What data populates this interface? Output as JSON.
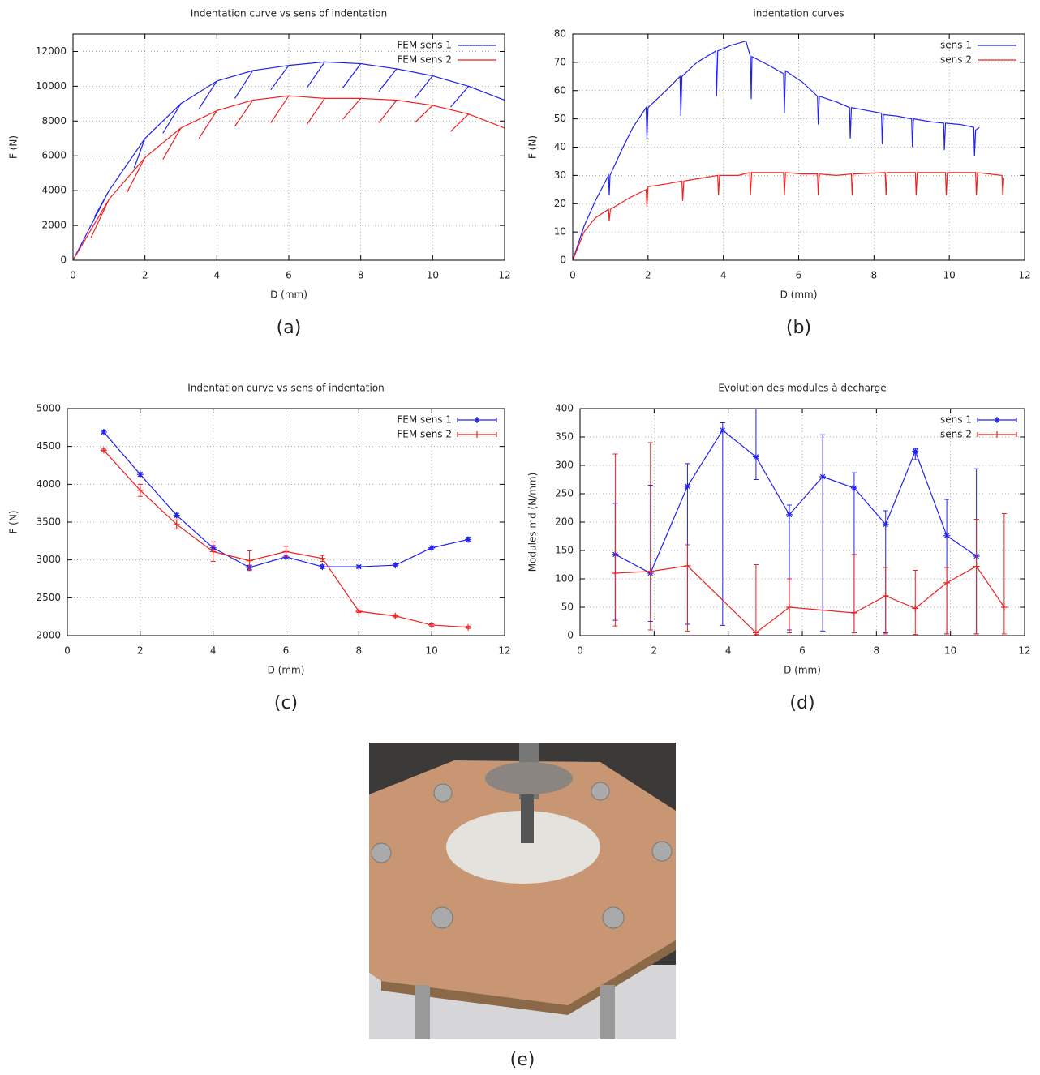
{
  "chart_data": [
    {
      "type": "line",
      "title": "Indentation curve vs sens of indentation",
      "xlabel": "D (mm)",
      "ylabel": "F (N)",
      "caption": "(a)",
      "xlim": [
        0,
        12
      ],
      "xticks": [
        0,
        2,
        4,
        6,
        8,
        10,
        12
      ],
      "ylim": [
        0,
        13000
      ],
      "yticks": [
        0,
        2000,
        4000,
        6000,
        8000,
        10000,
        12000
      ],
      "grid": true,
      "legend": "top right",
      "series": [
        {
          "name": "FEM sens 1",
          "color": "#2222ee",
          "x": [
            0,
            1,
            0.6,
            1,
            2,
            1.7,
            2,
            3,
            2.5,
            3,
            4,
            3.5,
            4,
            5,
            4.5,
            5,
            6,
            5.5,
            6,
            7,
            6.5,
            7,
            8,
            7.5,
            8,
            9,
            8.5,
            9,
            10,
            9.5,
            10,
            11,
            10.5,
            11,
            12
          ],
          "values": [
            0,
            4000,
            2500,
            4000,
            7000,
            5300,
            7000,
            9000,
            7300,
            9000,
            10300,
            8700,
            10300,
            10900,
            9300,
            10900,
            11200,
            9800,
            11200,
            11400,
            9900,
            11400,
            11300,
            9900,
            11300,
            11000,
            9700,
            11000,
            10600,
            9300,
            10600,
            10000,
            8800,
            10000,
            9200
          ]
        },
        {
          "name": "FEM sens 2",
          "color": "#ee2222",
          "x": [
            0,
            1,
            0.5,
            1,
            2,
            1.5,
            2,
            3,
            2.5,
            3,
            4,
            3.5,
            4,
            5,
            4.5,
            5,
            6,
            5.5,
            6,
            7,
            6.5,
            7,
            8,
            7.5,
            8,
            9,
            8.5,
            9,
            10,
            9.5,
            10,
            11,
            10.5,
            11,
            12
          ],
          "values": [
            0,
            3500,
            1300,
            3500,
            5900,
            3900,
            5900,
            7600,
            5800,
            7600,
            8600,
            7000,
            8600,
            9200,
            7700,
            9200,
            9450,
            7900,
            9450,
            9300,
            7800,
            9300,
            9300,
            8100,
            9300,
            9200,
            7900,
            9200,
            8900,
            7900,
            8900,
            8400,
            7400,
            8400,
            7600
          ]
        }
      ]
    },
    {
      "type": "line",
      "title": "indentation curves",
      "xlabel": "D (mm)",
      "ylabel": "F (N)",
      "caption": "(b)",
      "xlim": [
        0,
        12
      ],
      "xticks": [
        0,
        2,
        4,
        6,
        8,
        10,
        12
      ],
      "ylim": [
        0,
        80
      ],
      "yticks": [
        0,
        10,
        20,
        30,
        40,
        50,
        60,
        70,
        80
      ],
      "grid": true,
      "legend": "top right",
      "series": [
        {
          "name": "sens 1",
          "color": "#2222ee",
          "x": [
            0,
            0.3,
            0.6,
            0.95,
            0.97,
            0.99,
            1.3,
            1.6,
            1.95,
            1.97,
            2,
            2.4,
            2.85,
            2.87,
            2.9,
            3.3,
            3.8,
            3.82,
            3.85,
            4.2,
            4.6,
            4.72,
            4.74,
            4.76,
            5.2,
            5.6,
            5.62,
            5.65,
            6.1,
            6.5,
            6.52,
            6.55,
            7,
            7.35,
            7.37,
            7.4,
            7.8,
            8.2,
            8.22,
            8.25,
            8.6,
            9,
            9.02,
            9.05,
            9.5,
            9.85,
            9.87,
            9.9,
            10.3,
            10.65,
            10.67,
            10.7,
            10.8
          ],
          "values": [
            0,
            12,
            21,
            30,
            23,
            30,
            39,
            47,
            54,
            43,
            54,
            59,
            65,
            51,
            65,
            70,
            74,
            58,
            74,
            76,
            77.5,
            72,
            57,
            72,
            69,
            66,
            52,
            67,
            63,
            58,
            48,
            58,
            56,
            54,
            43,
            54,
            53,
            52,
            41,
            51.5,
            51,
            50,
            40,
            50,
            49,
            48.5,
            39,
            48.5,
            48,
            47,
            37,
            46,
            47
          ]
        },
        {
          "name": "sens 2",
          "color": "#ee2222",
          "x": [
            0,
            0.3,
            0.6,
            0.95,
            0.97,
            1,
            1.5,
            1.95,
            1.97,
            2,
            2.5,
            2.9,
            2.92,
            2.95,
            3.4,
            3.85,
            3.87,
            3.9,
            4.4,
            4.7,
            4.72,
            4.75,
            5.3,
            5.6,
            5.62,
            5.65,
            6.1,
            6.5,
            6.52,
            6.55,
            7,
            7.4,
            7.42,
            7.45,
            8.3,
            8.32,
            8.35,
            9.1,
            9.12,
            9.15,
            9.9,
            9.92,
            9.95,
            10.7,
            10.72,
            10.75,
            11.4,
            11.42,
            11.45
          ],
          "values": [
            0,
            10,
            15,
            18,
            14,
            18,
            22,
            25,
            19,
            26,
            27,
            28,
            21,
            28,
            29,
            30,
            23,
            30,
            30,
            31,
            23,
            31,
            31,
            31,
            23,
            31,
            30.5,
            30.5,
            23,
            30.5,
            30,
            30.5,
            23,
            30.5,
            31,
            23,
            31,
            31,
            23,
            31,
            31,
            23,
            31,
            31,
            23,
            31,
            30,
            23,
            29
          ]
        }
      ]
    },
    {
      "type": "line",
      "title": "Indentation curve vs sens of indentation",
      "xlabel": "D (mm)",
      "ylabel": "F (N)",
      "caption": "(c)",
      "xlim": [
        0,
        12
      ],
      "xticks": [
        0,
        2,
        4,
        6,
        8,
        10,
        12
      ],
      "ylim": [
        2000,
        5000
      ],
      "yticks": [
        2000,
        2500,
        3000,
        3500,
        4000,
        4500,
        5000
      ],
      "grid": true,
      "legend": "top right",
      "series": [
        {
          "name": "FEM sens 1",
          "color": "#2222ee",
          "marker": "star",
          "x": [
            1,
            2,
            3,
            4,
            5,
            6,
            7,
            8,
            9,
            10,
            11
          ],
          "values": [
            4690,
            4130,
            3590,
            3160,
            2900,
            3040,
            2910,
            2910,
            2930,
            3160,
            3270
          ],
          "errors": [
            20,
            25,
            25,
            30,
            30,
            25,
            25,
            15,
            20,
            25,
            30
          ]
        },
        {
          "name": "FEM sens 2",
          "color": "#ee2222",
          "marker": "plus",
          "x": [
            1,
            2,
            3,
            4,
            5,
            6,
            7,
            8,
            9,
            10,
            11
          ],
          "values": [
            4450,
            3920,
            3470,
            3110,
            2990,
            3110,
            3020,
            2320,
            2260,
            2140,
            2110
          ],
          "errors": [
            15,
            80,
            60,
            130,
            130,
            70,
            40,
            15,
            15,
            15,
            15
          ]
        }
      ]
    },
    {
      "type": "line",
      "title": "Evolution des modules à decharge",
      "xlabel": "D (mm)",
      "ylabel": "Modules md (N/mm)",
      "caption": "(d)",
      "xlim": [
        0,
        12
      ],
      "xticks": [
        0,
        2,
        4,
        6,
        8,
        10,
        12
      ],
      "ylim": [
        0,
        400
      ],
      "yticks": [
        0,
        50,
        100,
        150,
        200,
        250,
        300,
        350,
        400
      ],
      "grid": true,
      "legend": "top right",
      "series": [
        {
          "name": "sens 1",
          "color": "#2222ee",
          "marker": "star",
          "x": [
            0.95,
            1.9,
            2.9,
            3.85,
            4.75,
            5.65,
            6.55,
            7.4,
            8.25,
            9.05,
            9.9,
            10.7
          ],
          "values": [
            143,
            110,
            263,
            362,
            315,
            213,
            280,
            260,
            196,
            325,
            176,
            140
          ],
          "low": [
            27,
            25,
            20,
            18,
            275,
            10,
            8,
            5,
            5,
            310,
            3,
            3
          ],
          "high": [
            233,
            265,
            303,
            375,
            400,
            230,
            354,
            287,
            220,
            330,
            240,
            294
          ]
        },
        {
          "name": "sens 2",
          "color": "#ee2222",
          "marker": "plus",
          "x": [
            0.95,
            1.9,
            2.9,
            4.75,
            5.65,
            7.4,
            8.25,
            9.05,
            9.9,
            10.7,
            11.45
          ],
          "values": [
            110,
            113,
            123,
            5,
            50,
            40,
            70,
            48,
            93,
            122,
            50
          ],
          "low": [
            17,
            10,
            8,
            2,
            5,
            5,
            3,
            2,
            3,
            3,
            3
          ],
          "high": [
            320,
            340,
            160,
            125,
            100,
            143,
            120,
            115,
            120,
            205,
            215
          ]
        }
      ]
    }
  ],
  "photo_caption": "(e)"
}
